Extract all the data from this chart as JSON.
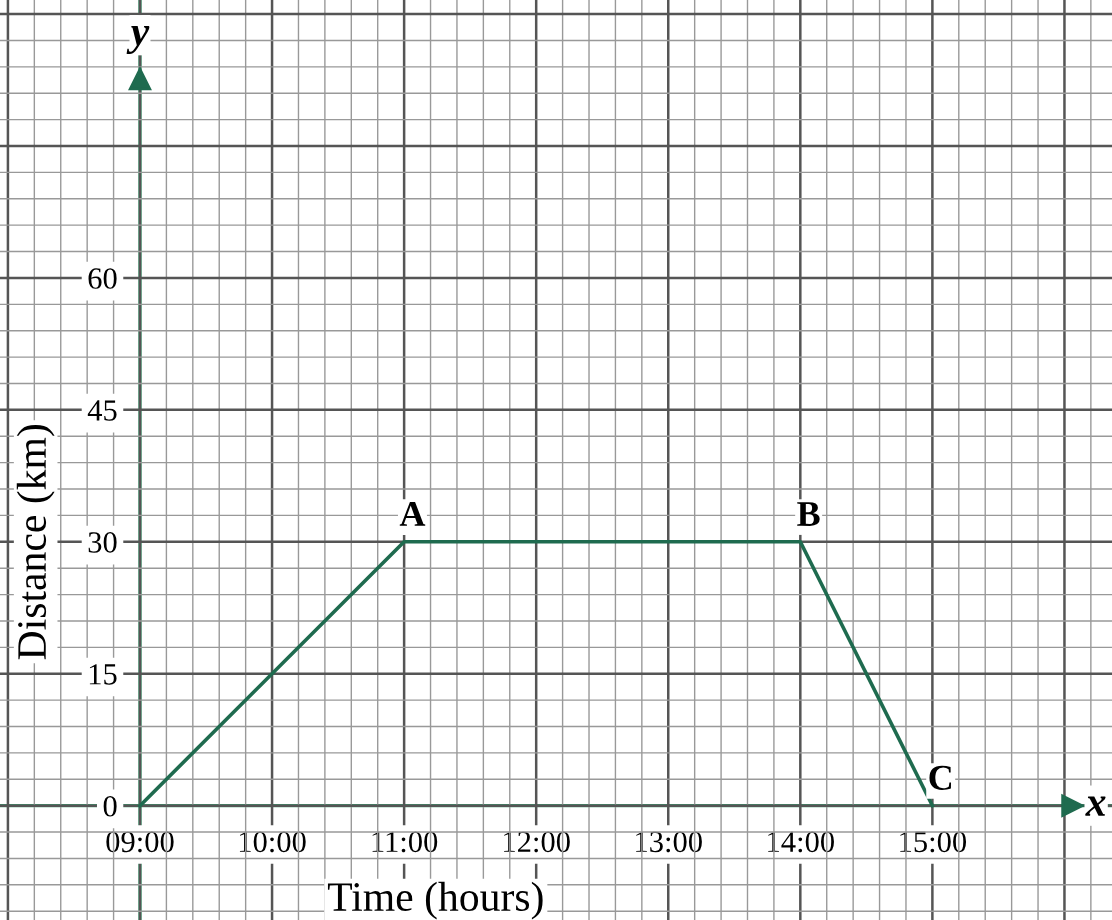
{
  "chart_data": {
    "type": "line",
    "xlabel": "Time (hours)",
    "ylabel": "Distance (km)",
    "x": [
      9,
      11,
      14,
      15
    ],
    "series": [
      {
        "color": "#1f6b4f",
        "values": [
          0,
          30,
          30,
          0
        ]
      }
    ],
    "xlim": [
      7.94,
      16.36
    ],
    "ylim": [
      -13,
      91.6
    ],
    "xticks": [
      {
        "value": 8,
        "label": null
      },
      {
        "value": 9,
        "label": "09:00"
      },
      {
        "value": 10,
        "label": "10:00"
      },
      {
        "value": 11,
        "label": "11:00"
      },
      {
        "value": 12,
        "label": "12:00"
      },
      {
        "value": 13,
        "label": "13:00"
      },
      {
        "value": 14,
        "label": "14:00"
      },
      {
        "value": 15,
        "label": "15:00"
      },
      {
        "value": 16,
        "label": null
      }
    ],
    "yticks": [
      0,
      15,
      30,
      45,
      60,
      {
        "value": 75,
        "label": null
      },
      {
        "value": 90,
        "label": null
      }
    ],
    "grid": true,
    "marker": "none",
    "line_style": "solid",
    "annotations": [
      {
        "text": "A",
        "x": 11,
        "y": 30
      },
      {
        "text": "B",
        "x": 14,
        "y": 30
      },
      {
        "text": "C",
        "x": 15,
        "y": 0
      },
      "x",
      "y"
    ]
  }
}
